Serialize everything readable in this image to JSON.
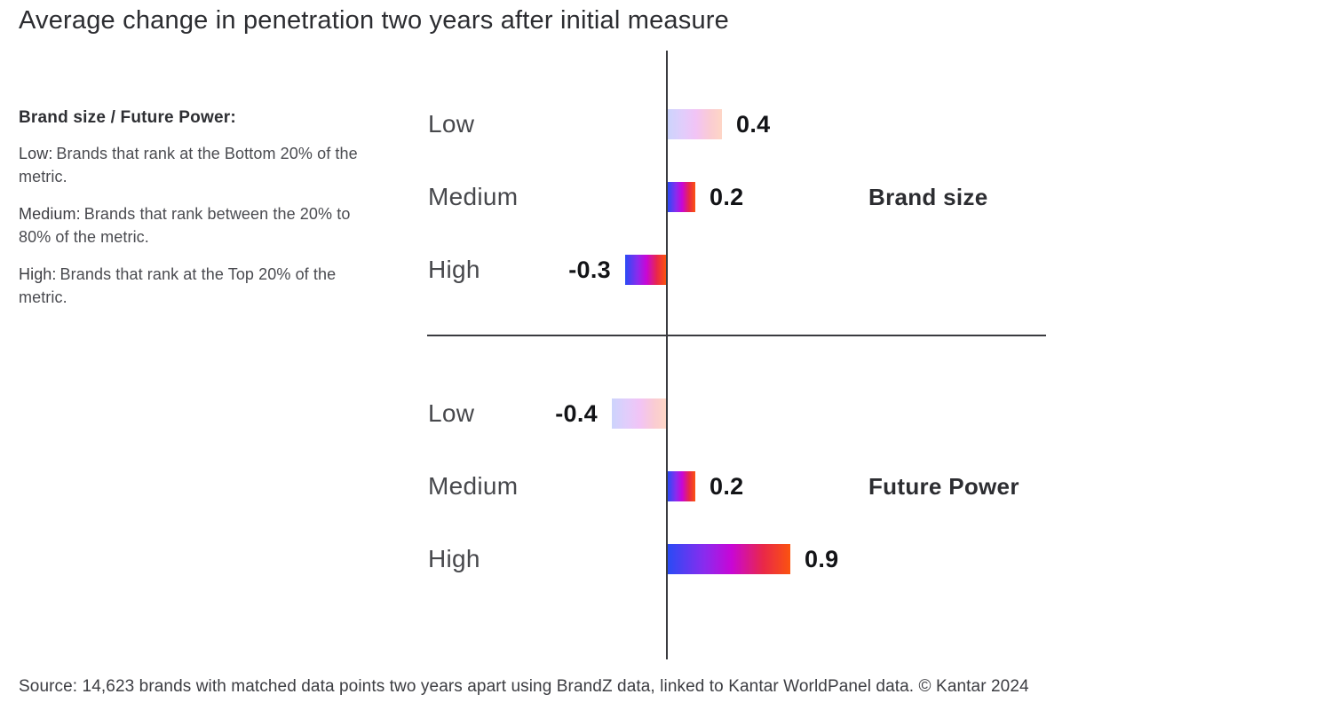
{
  "title": "Average change in penetration two years after initial measure",
  "legend": {
    "heading": "Brand size / Future Power:",
    "items": [
      {
        "term": "Low:",
        "desc": "Brands that rank at the Bottom 20% of the metric."
      },
      {
        "term": "Medium:",
        "desc": "Brands that rank between the 20% to 80% of the metric."
      },
      {
        "term": "High:",
        "desc": "Brands that rank at the Top 20% of the metric."
      }
    ]
  },
  "source": "Source: 14,623 brands with matched data points two years apart using BrandZ data, linked to Kantar WorldPanel data. © Kantar 2024",
  "colors": {
    "bar_gradient_start": "#2a4bf5",
    "bar_gradient_mid": "#c806d6",
    "bar_gradient_end": "#fb530f",
    "axis_line": "#3a3b3f",
    "value_text": "#131417",
    "category_text": "#47484c"
  },
  "chart_data": {
    "type": "bar",
    "orientation": "horizontal",
    "xlim": [
      -0.5,
      1.0
    ],
    "grid": false,
    "baseline_at_zero": true,
    "groups": [
      {
        "name": "Brand size",
        "categories": [
          "Low",
          "Medium",
          "High"
        ],
        "values": [
          0.4,
          0.2,
          -0.3
        ],
        "value_labels": [
          "0.4",
          "0.2",
          "-0.3"
        ],
        "bar_emphasis": [
          "light",
          "solid",
          "solid"
        ]
      },
      {
        "name": "Future Power",
        "categories": [
          "Low",
          "Medium",
          "High"
        ],
        "values": [
          -0.4,
          0.2,
          0.9
        ],
        "value_labels": [
          "-0.4",
          "0.2",
          "0.9"
        ],
        "bar_emphasis": [
          "light",
          "solid",
          "solid"
        ]
      }
    ]
  }
}
